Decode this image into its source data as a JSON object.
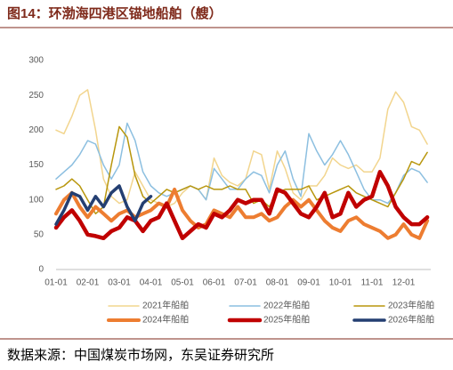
{
  "chart_data": {
    "type": "line",
    "title": "图14：环渤海四港区锚地船舶（艘）",
    "source": "数据来源：中国煤炭市场网，东吴证券研究所",
    "categories": [
      "01-01",
      null,
      null,
      null,
      "02-01",
      null,
      null,
      null,
      "03-01",
      null,
      null,
      null,
      "04-01",
      null,
      null,
      null,
      "05-01",
      null,
      null,
      null,
      "06-01",
      null,
      null,
      null,
      "07-01",
      null,
      null,
      null,
      "08-01",
      null,
      null,
      null,
      "09-01",
      null,
      null,
      null,
      "10-01",
      null,
      null,
      null,
      "11-01",
      null,
      null,
      null,
      "12-01",
      null,
      null,
      null
    ],
    "ylim": [
      0,
      300
    ],
    "yticks": [
      0,
      50,
      100,
      150,
      200,
      250,
      300
    ],
    "grid": false,
    "legend": "bottom",
    "series": [
      {
        "name": "2021年船舶",
        "color": "#f2d58e",
        "values": [
          200,
          195,
          220,
          250,
          258,
          200,
          130,
          105,
          95,
          100,
          140,
          120,
          100,
          95,
          90,
          95,
          110,
          120,
          115,
          100,
          160,
          135,
          125,
          120,
          130,
          170,
          165,
          115,
          170,
          145,
          110,
          100,
          120,
          120,
          135,
          160,
          150,
          145,
          150,
          140,
          140,
          160,
          230,
          255,
          240,
          205,
          200,
          180
        ]
      },
      {
        "name": "2022年船舶",
        "color": "#8cbfe0",
        "values": [
          130,
          140,
          150,
          165,
          185,
          180,
          150,
          130,
          150,
          210,
          185,
          140,
          120,
          110,
          105,
          110,
          115,
          120,
          115,
          100,
          145,
          130,
          115,
          115,
          130,
          140,
          135,
          110,
          150,
          170,
          130,
          105,
          195,
          170,
          150,
          165,
          185,
          165,
          140,
          115,
          100,
          100,
          95,
          110,
          135,
          145,
          140,
          125
        ]
      },
      {
        "name": "2023年船舶",
        "color": "#b8960c",
        "values": [
          115,
          120,
          130,
          120,
          100,
          80,
          90,
          150,
          205,
          190,
          135,
          105,
          95,
          105,
          115,
          110,
          115,
          120,
          115,
          120,
          115,
          115,
          120,
          115,
          115,
          95,
          100,
          90,
          110,
          115,
          115,
          115,
          120,
          100,
          105,
          110,
          115,
          120,
          110,
          105,
          100,
          95,
          90,
          110,
          130,
          155,
          150,
          168
        ]
      },
      {
        "name": "2024年船舶",
        "color": "#ed7d31",
        "values": [
          80,
          100,
          110,
          90,
          75,
          90,
          80,
          70,
          80,
          85,
          75,
          80,
          85,
          95,
          90,
          115,
          85,
          70,
          60,
          65,
          85,
          80,
          75,
          90,
          75,
          75,
          80,
          70,
          75,
          90,
          100,
          90,
          100,
          85,
          70,
          60,
          55,
          70,
          75,
          65,
          60,
          55,
          45,
          50,
          65,
          50,
          45,
          70
        ]
      },
      {
        "name": "2025年船舶",
        "color": "#c00000",
        "values": [
          60,
          75,
          85,
          70,
          50,
          48,
          45,
          55,
          60,
          75,
          70,
          55,
          70,
          75,
          95,
          70,
          45,
          55,
          65,
          60,
          80,
          75,
          85,
          100,
          95,
          100,
          100,
          80,
          115,
          110,
          95,
          80,
          75,
          90,
          110,
          75,
          80,
          110,
          90,
          100,
          105,
          140,
          120,
          90,
          75,
          65,
          65,
          75
        ]
      },
      {
        "name": "2026年船舶",
        "color": "#243f72",
        "values": [
          65,
          85,
          110,
          105,
          85,
          105,
          90,
          110,
          120,
          90,
          70,
          95,
          105,
          null,
          null,
          null,
          null,
          null,
          null,
          null,
          null,
          null,
          null,
          null,
          null,
          null,
          null,
          null,
          null,
          null,
          null,
          null,
          null,
          null,
          null,
          null,
          null,
          null,
          null,
          null,
          null,
          null,
          null,
          null,
          null,
          null,
          null,
          null
        ]
      }
    ]
  }
}
